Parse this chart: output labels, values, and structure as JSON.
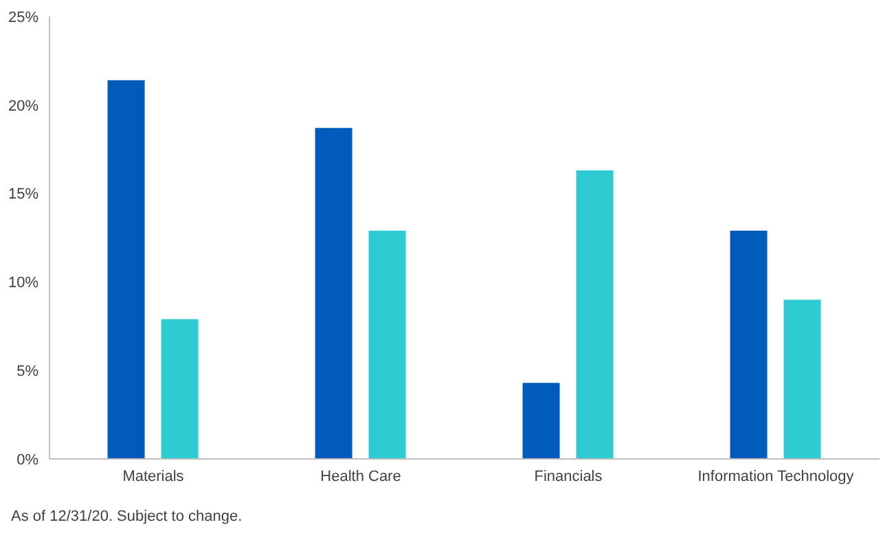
{
  "chart_data": {
    "type": "bar",
    "categories": [
      "Materials",
      "Health Care",
      "Financials",
      "Information Technology"
    ],
    "series": [
      {
        "color": "#005bbb",
        "values": [
          21.4,
          18.7,
          4.3,
          12.9
        ]
      },
      {
        "color": "#2ecbd3",
        "values": [
          7.9,
          12.9,
          16.3,
          9.0
        ]
      }
    ],
    "ylim": [
      0,
      25
    ],
    "yticks": [
      {
        "value": 0,
        "label": "0%"
      },
      {
        "value": 5,
        "label": "5%"
      },
      {
        "value": 10,
        "label": "10%"
      },
      {
        "value": 15,
        "label": "15%"
      },
      {
        "value": 20,
        "label": "20%"
      },
      {
        "value": 25,
        "label": "25%"
      }
    ],
    "grid": false,
    "legend": false,
    "annotations": [
      "As of 12/31/20. Subject to change."
    ]
  }
}
